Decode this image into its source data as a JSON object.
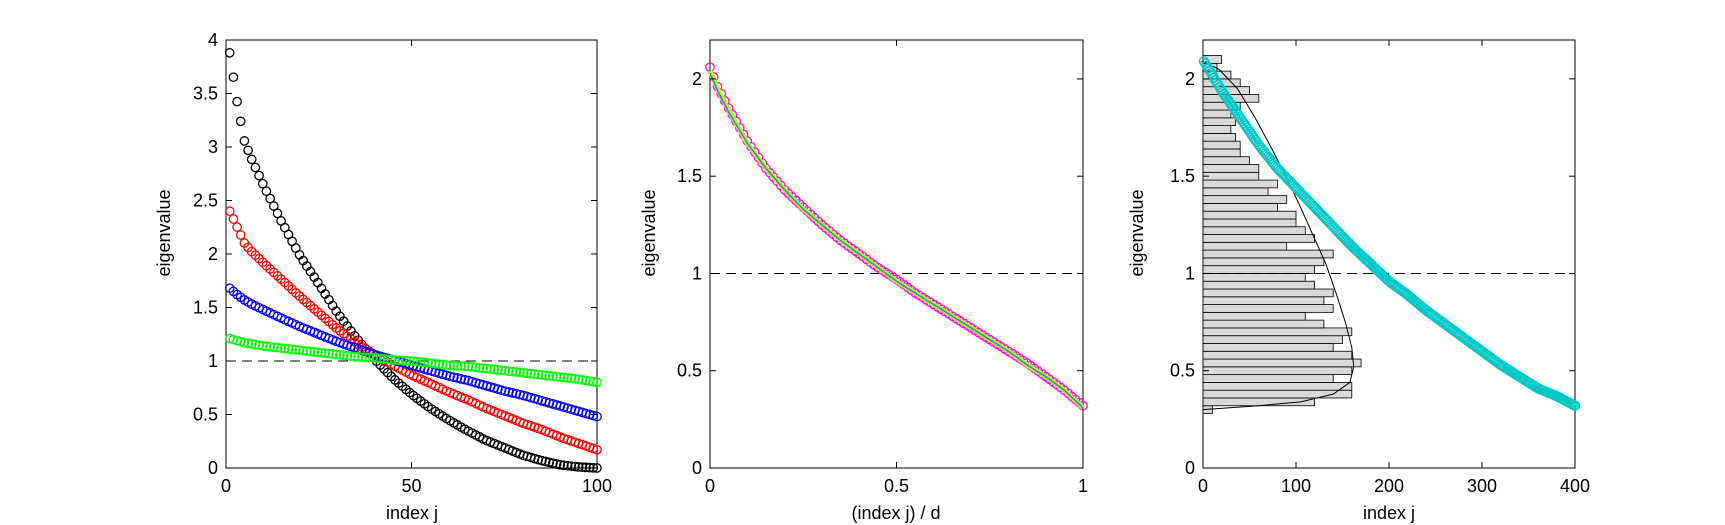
{
  "chart_data": [
    {
      "type": "scatter",
      "title": "",
      "xlabel": "index j",
      "ylabel": "eigenvalue",
      "xlim": [
        0,
        100
      ],
      "ylim": [
        0,
        4
      ],
      "xticks": [
        "0",
        "50",
        "100"
      ],
      "yticks": [
        "0",
        "0.5",
        "1",
        "1.5",
        "2",
        "2.5",
        "3",
        "3.5",
        "4"
      ],
      "grid": false,
      "marker": "open circle",
      "reference_line": {
        "y": 1,
        "style": "dashed",
        "color": "#000000"
      },
      "series": [
        {
          "color": "#000000",
          "x": [
            1,
            3,
            5,
            7,
            10,
            15,
            20,
            25,
            30,
            35,
            40,
            45,
            50,
            55,
            60,
            65,
            70,
            75,
            80,
            85,
            90,
            95,
            100
          ],
          "values": [
            3.88,
            3.42,
            3.05,
            2.88,
            2.65,
            2.3,
            1.98,
            1.72,
            1.45,
            1.22,
            1.02,
            0.84,
            0.69,
            0.56,
            0.45,
            0.35,
            0.26,
            0.19,
            0.12,
            0.07,
            0.03,
            0.01,
            0.0
          ]
        },
        {
          "color": "#ff0000",
          "x": [
            1,
            3,
            5,
            7,
            10,
            15,
            20,
            25,
            30,
            35,
            40,
            45,
            50,
            55,
            60,
            65,
            70,
            75,
            80,
            85,
            90,
            95,
            100
          ],
          "values": [
            2.4,
            2.25,
            2.1,
            2.02,
            1.92,
            1.76,
            1.6,
            1.45,
            1.3,
            1.17,
            1.06,
            0.96,
            0.87,
            0.79,
            0.71,
            0.64,
            0.56,
            0.49,
            0.42,
            0.36,
            0.29,
            0.23,
            0.17
          ]
        },
        {
          "color": "#0000ff",
          "x": [
            1,
            3,
            5,
            7,
            10,
            15,
            20,
            25,
            30,
            35,
            40,
            45,
            50,
            55,
            60,
            65,
            70,
            75,
            80,
            85,
            90,
            95,
            100
          ],
          "values": [
            1.68,
            1.62,
            1.57,
            1.53,
            1.48,
            1.4,
            1.32,
            1.25,
            1.18,
            1.12,
            1.06,
            1.01,
            0.96,
            0.91,
            0.86,
            0.82,
            0.77,
            0.72,
            0.68,
            0.63,
            0.58,
            0.53,
            0.48
          ]
        },
        {
          "color": "#00ff00",
          "x": [
            1,
            3,
            5,
            7,
            10,
            15,
            20,
            25,
            30,
            35,
            40,
            45,
            50,
            55,
            60,
            65,
            70,
            75,
            80,
            85,
            90,
            95,
            100
          ],
          "values": [
            1.21,
            1.19,
            1.17,
            1.16,
            1.14,
            1.12,
            1.1,
            1.08,
            1.06,
            1.04,
            1.03,
            1.01,
            1.0,
            0.98,
            0.96,
            0.95,
            0.93,
            0.91,
            0.89,
            0.87,
            0.85,
            0.83,
            0.8
          ]
        }
      ]
    },
    {
      "type": "line",
      "title": "",
      "xlabel": "(index j) / d",
      "ylabel": "eigenvalue",
      "xlim": [
        0,
        1
      ],
      "ylim": [
        0,
        2.2
      ],
      "xticks": [
        "0",
        "0.5",
        "1"
      ],
      "yticks": [
        "0",
        "0.5",
        "1",
        "1.5",
        "2"
      ],
      "grid": false,
      "reference_line": {
        "y": 1,
        "style": "dashed",
        "color": "#000000"
      },
      "curve_x": [
        0,
        0.02,
        0.05,
        0.1,
        0.15,
        0.2,
        0.25,
        0.3,
        0.35,
        0.4,
        0.45,
        0.5,
        0.55,
        0.6,
        0.65,
        0.7,
        0.75,
        0.8,
        0.85,
        0.9,
        0.95,
        1.0
      ],
      "series": [
        {
          "color": "#ff00ff",
          "marker": "open circle",
          "values": [
            2.06,
            1.96,
            1.85,
            1.68,
            1.54,
            1.43,
            1.34,
            1.25,
            1.17,
            1.1,
            1.03,
            0.97,
            0.9,
            0.84,
            0.78,
            0.72,
            0.66,
            0.6,
            0.54,
            0.47,
            0.4,
            0.32
          ]
        },
        {
          "color": "#d4e81a",
          "marker": "line",
          "values": [
            2.04,
            1.95,
            1.84,
            1.67,
            1.54,
            1.43,
            1.33,
            1.25,
            1.17,
            1.1,
            1.03,
            0.96,
            0.9,
            0.84,
            0.78,
            0.72,
            0.66,
            0.6,
            0.53,
            0.47,
            0.4,
            0.31
          ]
        },
        {
          "color": "#00a0c8",
          "marker": "line",
          "values": [
            2.03,
            1.94,
            1.83,
            1.67,
            1.54,
            1.43,
            1.33,
            1.25,
            1.17,
            1.1,
            1.03,
            0.96,
            0.9,
            0.84,
            0.78,
            0.72,
            0.66,
            0.6,
            0.53,
            0.47,
            0.4,
            0.31
          ]
        }
      ]
    },
    {
      "type": "scatter",
      "title": "",
      "xlabel": "index j",
      "ylabel": "eigenvalue",
      "xlim": [
        0,
        400
      ],
      "ylim": [
        0,
        2.2
      ],
      "xticks": [
        "0",
        "100",
        "200",
        "300",
        "400"
      ],
      "yticks": [
        "0",
        "0.5",
        "1",
        "1.5",
        "2"
      ],
      "grid": false,
      "reference_line": {
        "y": 1,
        "style": "dashed",
        "color": "#000000"
      },
      "series": [
        {
          "color": "#00c8c8",
          "marker": "open circle",
          "x": [
            1,
            5,
            10,
            20,
            40,
            60,
            80,
            100,
            120,
            140,
            160,
            180,
            200,
            220,
            240,
            260,
            280,
            300,
            320,
            340,
            360,
            380,
            400
          ],
          "values": [
            2.09,
            2.06,
            2.02,
            1.94,
            1.8,
            1.66,
            1.54,
            1.44,
            1.34,
            1.24,
            1.14,
            1.05,
            0.96,
            0.89,
            0.81,
            0.74,
            0.67,
            0.6,
            0.53,
            0.47,
            0.41,
            0.37,
            0.32
          ]
        }
      ],
      "histogram": {
        "color": "#d9d9d9",
        "edge_color": "#000000",
        "orientation": "horizontal",
        "bin_width": 0.04,
        "bin_centers": [
          0.3,
          0.34,
          0.38,
          0.42,
          0.46,
          0.5,
          0.54,
          0.58,
          0.62,
          0.66,
          0.7,
          0.74,
          0.78,
          0.82,
          0.86,
          0.9,
          0.94,
          0.98,
          1.02,
          1.06,
          1.1,
          1.14,
          1.18,
          1.22,
          1.26,
          1.3,
          1.34,
          1.38,
          1.42,
          1.46,
          1.5,
          1.54,
          1.58,
          1.62,
          1.66,
          1.7,
          1.74,
          1.78,
          1.82,
          1.86,
          1.9,
          1.94,
          1.98,
          2.02,
          2.06,
          2.1
        ],
        "counts": [
          10,
          120,
          160,
          160,
          140,
          160,
          170,
          160,
          140,
          150,
          160,
          130,
          110,
          140,
          130,
          140,
          120,
          110,
          120,
          130,
          140,
          90,
          120,
          110,
          100,
          100,
          80,
          90,
          70,
          80,
          60,
          60,
          50,
          40,
          40,
          35,
          30,
          35,
          30,
          40,
          60,
          50,
          40,
          30,
          15,
          20
        ]
      },
      "density_curve": {
        "color": "#000000",
        "y": [
          0.3,
          0.32,
          0.34,
          0.38,
          0.44,
          0.52,
          0.62,
          0.75,
          0.9,
          1.05,
          1.2,
          1.35,
          1.5,
          1.65,
          1.8,
          1.95,
          2.05,
          2.09
        ],
        "x": [
          0,
          60,
          105,
          140,
          158,
          162,
          160,
          153,
          143,
          132,
          118,
          104,
          89,
          73,
          56,
          37,
          17,
          0
        ]
      }
    }
  ]
}
